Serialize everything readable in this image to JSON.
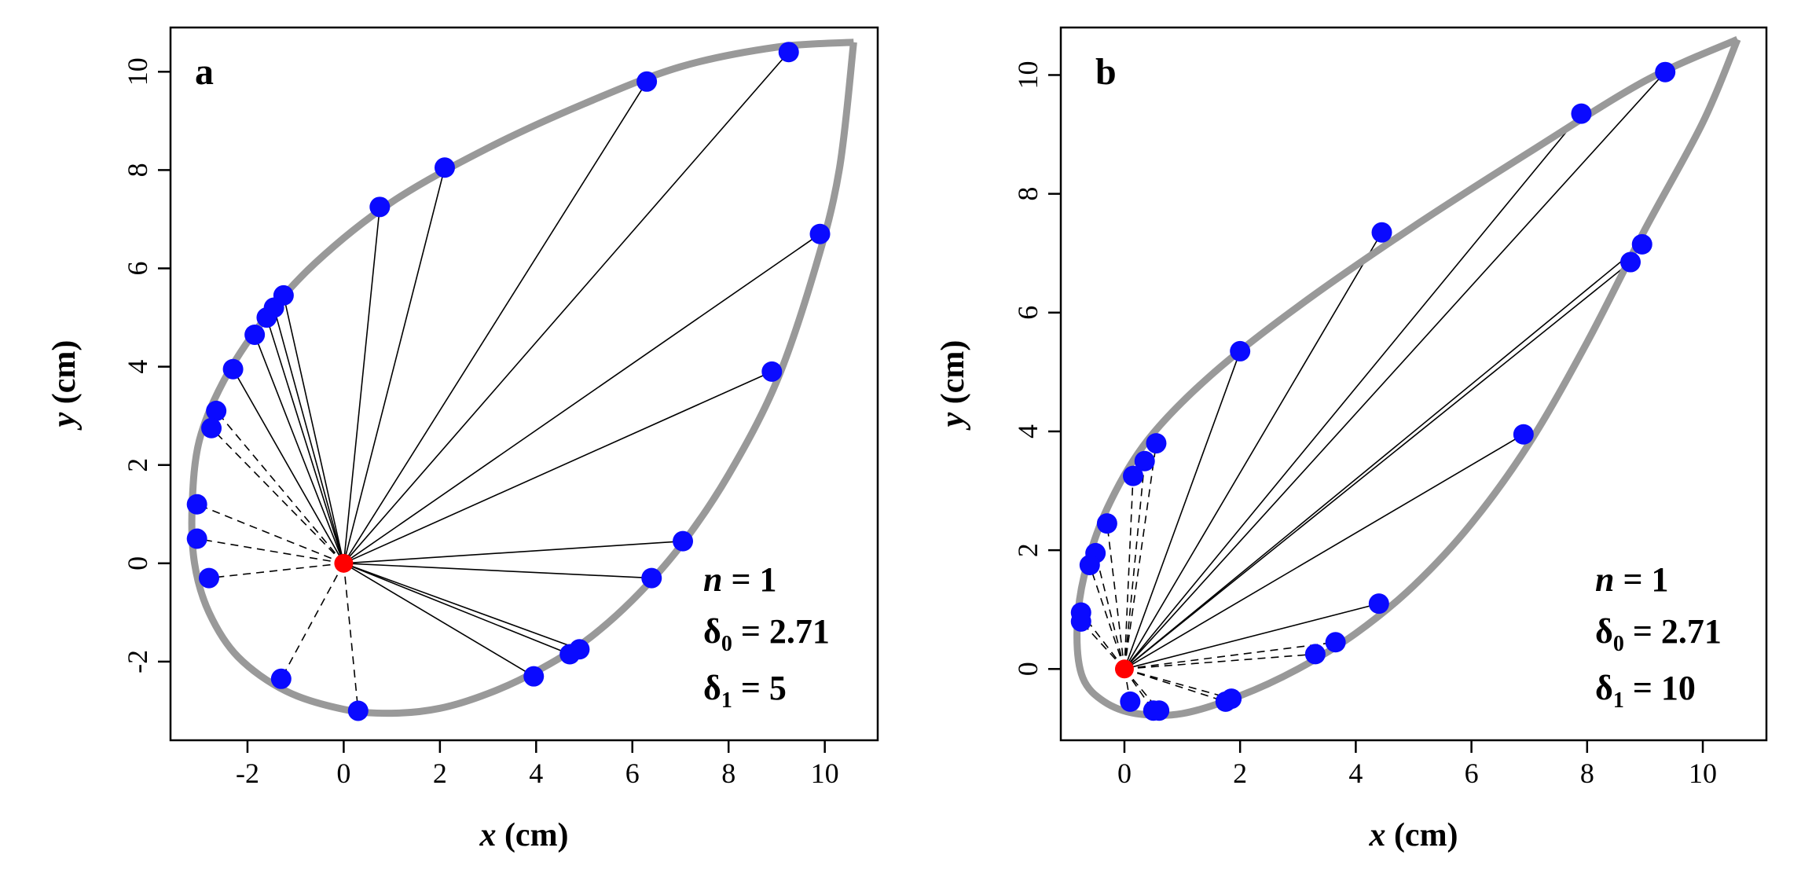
{
  "chart_data": [
    {
      "type": "scatter",
      "panel": "a",
      "xlabel_var": "x",
      "xlabel_unit": "(cm)",
      "ylabel_var": "y",
      "ylabel_unit": "(cm)",
      "xlim": [
        -3.6,
        11.1
      ],
      "ylim": [
        -3.6,
        10.9
      ],
      "xticks": [
        -2,
        0,
        2,
        4,
        6,
        8,
        10
      ],
      "yticks": [
        -2,
        0,
        2,
        4,
        6,
        8,
        10
      ],
      "xtick_labels": [
        "-2",
        "0",
        "2",
        "4",
        "6",
        "8",
        "10"
      ],
      "ytick_labels": [
        "-2",
        "0",
        "2",
        "4",
        "6",
        "8",
        "10"
      ],
      "annotations": [
        {
          "prefix": "n",
          "sub": "",
          "text": " = 1"
        },
        {
          "prefix": "δ",
          "sub": "0",
          "text": " = 2.71"
        },
        {
          "prefix": "δ",
          "sub": "1",
          "text": " = 5"
        }
      ],
      "curve": [
        [
          10.6,
          10.6
        ],
        [
          9.0,
          10.5
        ],
        [
          7.0,
          10.1
        ],
        [
          5.0,
          9.35
        ],
        [
          3.0,
          8.45
        ],
        [
          1.0,
          7.35
        ],
        [
          -0.6,
          6.1
        ],
        [
          -1.7,
          4.9
        ],
        [
          -2.5,
          3.7
        ],
        [
          -3.0,
          2.5
        ],
        [
          -3.15,
          1.2
        ],
        [
          -3.1,
          0.0
        ],
        [
          -2.8,
          -1.0
        ],
        [
          -2.2,
          -1.9
        ],
        [
          -1.2,
          -2.6
        ],
        [
          0.0,
          -2.97
        ],
        [
          1.0,
          -3.05
        ],
        [
          2.0,
          -2.95
        ],
        [
          3.0,
          -2.65
        ],
        [
          4.0,
          -2.2
        ],
        [
          5.0,
          -1.6
        ],
        [
          6.0,
          -0.75
        ],
        [
          7.0,
          0.35
        ],
        [
          8.0,
          1.8
        ],
        [
          9.0,
          3.7
        ],
        [
          9.8,
          6.0
        ],
        [
          10.3,
          8.0
        ],
        [
          10.6,
          10.6
        ]
      ],
      "origin": {
        "x": 0,
        "y": 0
      },
      "points": [
        {
          "x": 9.25,
          "y": 10.4
        },
        {
          "x": 6.3,
          "y": 9.8
        },
        {
          "x": 2.1,
          "y": 8.05
        },
        {
          "x": 0.75,
          "y": 7.25
        },
        {
          "x": 9.9,
          "y": 6.7
        },
        {
          "x": -1.25,
          "y": 5.45
        },
        {
          "x": -1.45,
          "y": 5.2
        },
        {
          "x": -1.6,
          "y": 5.0
        },
        {
          "x": -1.85,
          "y": 4.65
        },
        {
          "x": -2.3,
          "y": 3.95
        },
        {
          "x": 8.9,
          "y": 3.9
        },
        {
          "x": -2.65,
          "y": 3.1
        },
        {
          "x": -2.75,
          "y": 2.75
        },
        {
          "x": -3.05,
          "y": 1.2
        },
        {
          "x": -3.05,
          "y": 0.5
        },
        {
          "x": 7.05,
          "y": 0.45
        },
        {
          "x": -2.8,
          "y": -0.3
        },
        {
          "x": 6.4,
          "y": -0.3
        },
        {
          "x": 4.9,
          "y": -1.75
        },
        {
          "x": 4.7,
          "y": -1.85
        },
        {
          "x": 3.95,
          "y": -2.3
        },
        {
          "x": -1.3,
          "y": -2.35
        },
        {
          "x": 0.3,
          "y": -3.0
        }
      ]
    },
    {
      "type": "scatter",
      "panel": "b",
      "xlabel_var": "x",
      "xlabel_unit": "(cm)",
      "ylabel_var": "y",
      "ylabel_unit": "(cm)",
      "xlim": [
        -1.1,
        11.1
      ],
      "ylim": [
        -1.2,
        10.8
      ],
      "xticks": [
        0,
        2,
        4,
        6,
        8,
        10
      ],
      "yticks": [
        0,
        2,
        4,
        6,
        8,
        10
      ],
      "xtick_labels": [
        "0",
        "2",
        "4",
        "6",
        "8",
        "10"
      ],
      "ytick_labels": [
        "0",
        "2",
        "4",
        "6",
        "8",
        "10"
      ],
      "annotations": [
        {
          "prefix": "n",
          "sub": "",
          "text": " = 1"
        },
        {
          "prefix": "δ",
          "sub": "0",
          "text": " = 2.71"
        },
        {
          "prefix": "δ",
          "sub": "1",
          "text": " = 10"
        }
      ],
      "curve": [
        [
          10.6,
          10.6
        ],
        [
          9.0,
          9.9
        ],
        [
          7.0,
          8.7
        ],
        [
          5.0,
          7.45
        ],
        [
          3.0,
          6.1
        ],
        [
          1.5,
          4.95
        ],
        [
          0.4,
          3.85
        ],
        [
          -0.3,
          2.7
        ],
        [
          -0.7,
          1.55
        ],
        [
          -0.82,
          0.6
        ],
        [
          -0.72,
          -0.15
        ],
        [
          -0.35,
          -0.55
        ],
        [
          0.2,
          -0.75
        ],
        [
          1.0,
          -0.75
        ],
        [
          2.0,
          -0.45
        ],
        [
          3.0,
          0.0
        ],
        [
          4.0,
          0.6
        ],
        [
          5.0,
          1.4
        ],
        [
          6.0,
          2.45
        ],
        [
          7.0,
          3.8
        ],
        [
          8.0,
          5.5
        ],
        [
          9.0,
          7.4
        ],
        [
          10.0,
          9.2
        ],
        [
          10.6,
          10.6
        ]
      ],
      "origin": {
        "x": 0,
        "y": 0
      },
      "points": [
        {
          "x": 9.35,
          "y": 10.05
        },
        {
          "x": 7.9,
          "y": 9.35
        },
        {
          "x": 4.45,
          "y": 7.35
        },
        {
          "x": 8.95,
          "y": 7.15
        },
        {
          "x": 8.75,
          "y": 6.85
        },
        {
          "x": 2.0,
          "y": 5.35
        },
        {
          "x": 6.9,
          "y": 3.95
        },
        {
          "x": 0.55,
          "y": 3.8
        },
        {
          "x": 0.35,
          "y": 3.5
        },
        {
          "x": 0.15,
          "y": 3.25
        },
        {
          "x": -0.3,
          "y": 2.45
        },
        {
          "x": -0.5,
          "y": 1.95
        },
        {
          "x": -0.6,
          "y": 1.75
        },
        {
          "x": 4.4,
          "y": 1.1
        },
        {
          "x": -0.75,
          "y": 0.95
        },
        {
          "x": -0.75,
          "y": 0.8
        },
        {
          "x": 3.65,
          "y": 0.45
        },
        {
          "x": 3.3,
          "y": 0.25
        },
        {
          "x": 0.1,
          "y": -0.55
        },
        {
          "x": 0.5,
          "y": -0.7
        },
        {
          "x": 0.6,
          "y": -0.7
        },
        {
          "x": 1.75,
          "y": -0.55
        },
        {
          "x": 1.85,
          "y": -0.5
        }
      ]
    }
  ]
}
